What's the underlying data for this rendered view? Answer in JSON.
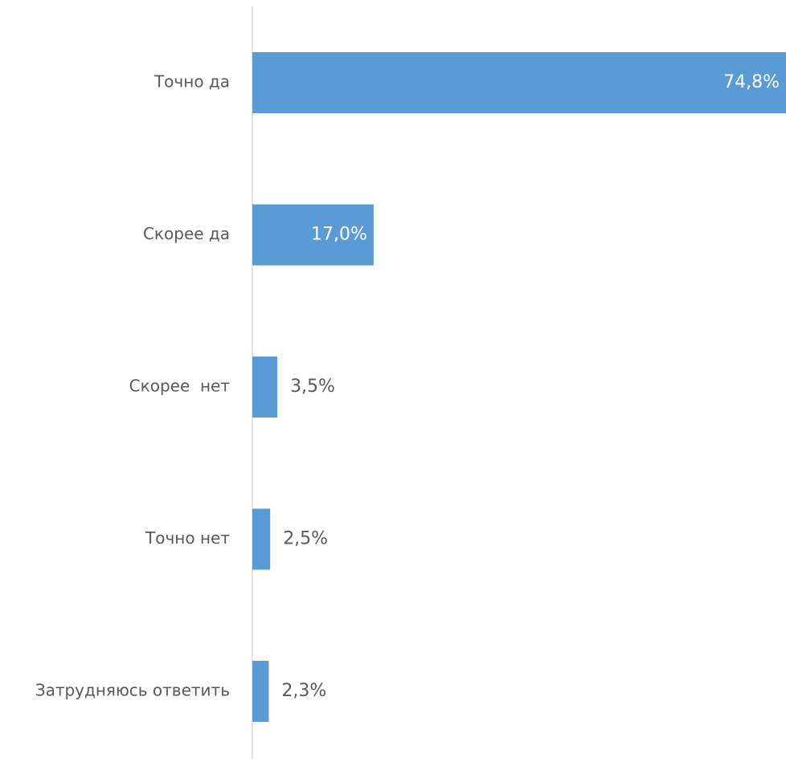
{
  "chart_data": {
    "type": "bar",
    "orientation": "horizontal",
    "categories": [
      "Точно да",
      "Скорее да",
      "Скорее  нет",
      "Точно нет",
      "Затрудняюсь ответить"
    ],
    "values": [
      74.8,
      17.0,
      3.5,
      2.5,
      2.3
    ],
    "value_labels": [
      "74,8%",
      "17,0%",
      "3,5%",
      "2,5%",
      "2,3%"
    ],
    "xlim": [
      0,
      74.8
    ],
    "grid": false,
    "legend": "none",
    "colors": {
      "bar": "#5b9bd5",
      "axis": "#d9d9d9",
      "category_text": "#595959",
      "value_text_inside": "#ffffff",
      "value_text_outside": "#595959"
    }
  }
}
